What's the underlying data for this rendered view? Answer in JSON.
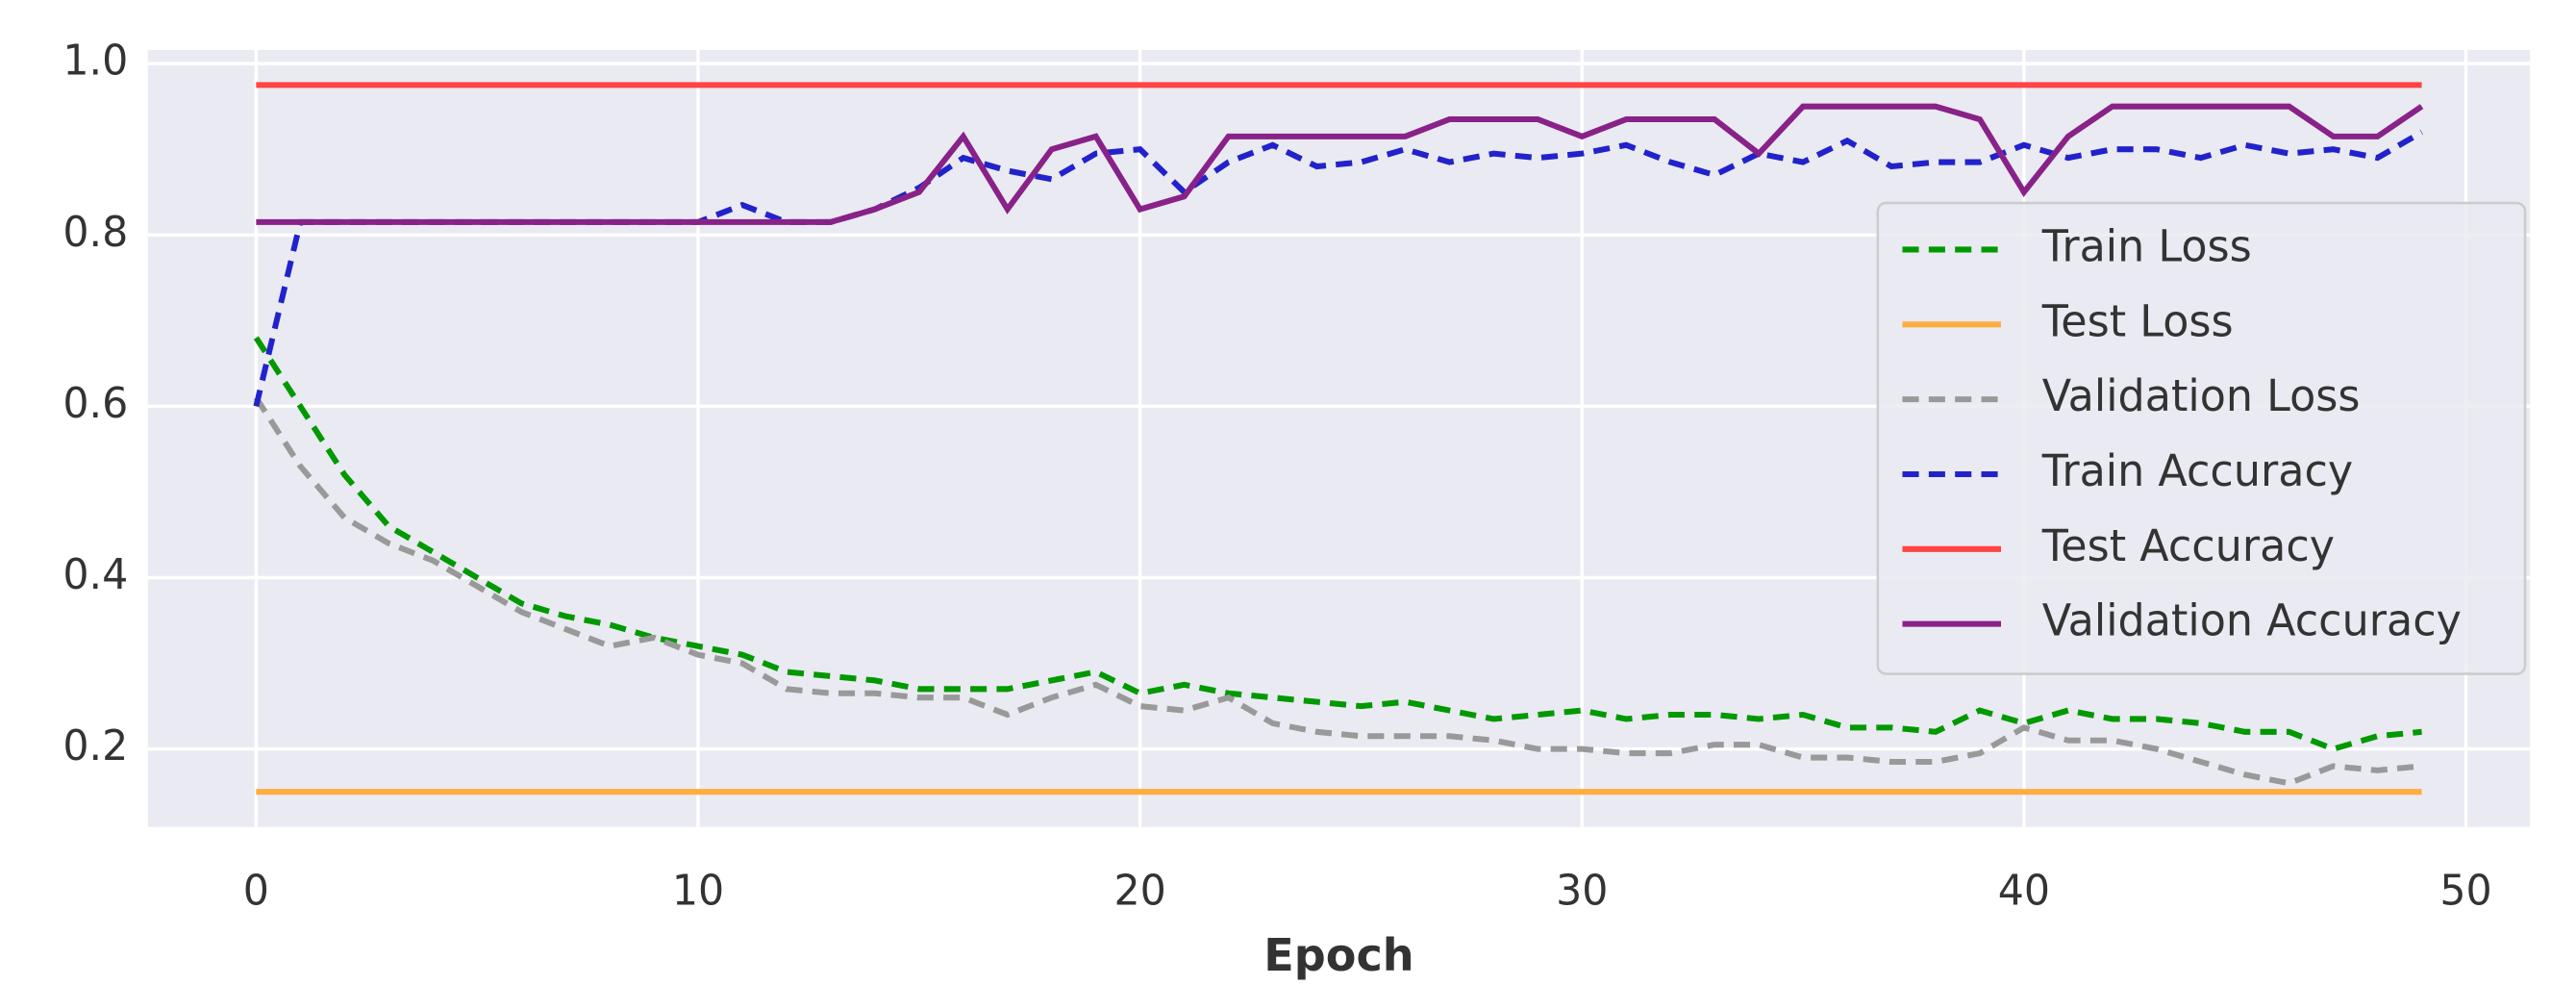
{
  "chart_data": {
    "type": "line",
    "x_label": "Epoch",
    "x": [
      0,
      1,
      2,
      3,
      4,
      5,
      6,
      7,
      8,
      9,
      10,
      11,
      12,
      13,
      14,
      15,
      16,
      17,
      18,
      19,
      20,
      21,
      22,
      23,
      24,
      25,
      26,
      27,
      28,
      29,
      30,
      31,
      32,
      33,
      34,
      35,
      36,
      37,
      38,
      39,
      40,
      41,
      42,
      43,
      44,
      45,
      46,
      47,
      48,
      49
    ],
    "series": [
      {
        "name": "Train Loss",
        "color": "#009900",
        "dashed": true,
        "values": [
          0.68,
          0.6,
          0.52,
          0.46,
          0.43,
          0.4,
          0.37,
          0.355,
          0.345,
          0.33,
          0.32,
          0.31,
          0.29,
          0.285,
          0.28,
          0.27,
          0.27,
          0.27,
          0.28,
          0.29,
          0.265,
          0.275,
          0.265,
          0.26,
          0.255,
          0.25,
          0.255,
          0.245,
          0.235,
          0.24,
          0.245,
          0.235,
          0.24,
          0.24,
          0.235,
          0.24,
          0.225,
          0.225,
          0.22,
          0.245,
          0.23,
          0.245,
          0.235,
          0.235,
          0.23,
          0.22,
          0.22,
          0.2,
          0.215,
          0.22
        ]
      },
      {
        "name": "Test Loss",
        "color": "#ffad40",
        "dashed": false,
        "values": [
          0.15,
          0.15,
          0.15,
          0.15,
          0.15,
          0.15,
          0.15,
          0.15,
          0.15,
          0.15,
          0.15,
          0.15,
          0.15,
          0.15,
          0.15,
          0.15,
          0.15,
          0.15,
          0.15,
          0.15,
          0.15,
          0.15,
          0.15,
          0.15,
          0.15,
          0.15,
          0.15,
          0.15,
          0.15,
          0.15,
          0.15,
          0.15,
          0.15,
          0.15,
          0.15,
          0.15,
          0.15,
          0.15,
          0.15,
          0.15,
          0.15,
          0.15,
          0.15,
          0.15,
          0.15,
          0.15,
          0.15,
          0.15,
          0.15,
          0.15
        ]
      },
      {
        "name": "Validation Loss",
        "color": "#999999",
        "dashed": true,
        "values": [
          0.61,
          0.53,
          0.47,
          0.44,
          0.42,
          0.39,
          0.36,
          0.34,
          0.32,
          0.33,
          0.31,
          0.3,
          0.27,
          0.265,
          0.265,
          0.26,
          0.26,
          0.24,
          0.26,
          0.275,
          0.25,
          0.245,
          0.26,
          0.23,
          0.22,
          0.215,
          0.215,
          0.215,
          0.21,
          0.2,
          0.2,
          0.195,
          0.195,
          0.205,
          0.205,
          0.19,
          0.19,
          0.185,
          0.185,
          0.195,
          0.225,
          0.21,
          0.21,
          0.2,
          0.185,
          0.17,
          0.16,
          0.18,
          0.175,
          0.18
        ]
      },
      {
        "name": "Train Accuracy",
        "color": "#2222cc",
        "dashed": true,
        "values": [
          0.6,
          0.815,
          0.815,
          0.815,
          0.815,
          0.815,
          0.815,
          0.815,
          0.815,
          0.815,
          0.815,
          0.835,
          0.815,
          0.815,
          0.83,
          0.855,
          0.89,
          0.875,
          0.865,
          0.895,
          0.9,
          0.85,
          0.885,
          0.905,
          0.88,
          0.885,
          0.9,
          0.885,
          0.895,
          0.89,
          0.895,
          0.905,
          0.885,
          0.87,
          0.895,
          0.885,
          0.91,
          0.88,
          0.885,
          0.885,
          0.905,
          0.89,
          0.9,
          0.9,
          0.89,
          0.905,
          0.895,
          0.9,
          0.89,
          0.92
        ]
      },
      {
        "name": "Test Accuracy",
        "color": "#ff4444",
        "dashed": false,
        "values": [
          0.975,
          0.975,
          0.975,
          0.975,
          0.975,
          0.975,
          0.975,
          0.975,
          0.975,
          0.975,
          0.975,
          0.975,
          0.975,
          0.975,
          0.975,
          0.975,
          0.975,
          0.975,
          0.975,
          0.975,
          0.975,
          0.975,
          0.975,
          0.975,
          0.975,
          0.975,
          0.975,
          0.975,
          0.975,
          0.975,
          0.975,
          0.975,
          0.975,
          0.975,
          0.975,
          0.975,
          0.975,
          0.975,
          0.975,
          0.975,
          0.975,
          0.975,
          0.975,
          0.975,
          0.975,
          0.975,
          0.975,
          0.975,
          0.975,
          0.975
        ]
      },
      {
        "name": "Validation Accuracy",
        "color": "#882288",
        "dashed": false,
        "values": [
          0.815,
          0.815,
          0.815,
          0.815,
          0.815,
          0.815,
          0.815,
          0.815,
          0.815,
          0.815,
          0.815,
          0.815,
          0.815,
          0.815,
          0.83,
          0.85,
          0.915,
          0.83,
          0.9,
          0.915,
          0.83,
          0.845,
          0.915,
          0.915,
          0.915,
          0.915,
          0.915,
          0.935,
          0.935,
          0.935,
          0.915,
          0.935,
          0.935,
          0.935,
          0.895,
          0.95,
          0.95,
          0.95,
          0.95,
          0.935,
          0.85,
          0.915,
          0.95,
          0.95,
          0.95,
          0.95,
          0.95,
          0.915,
          0.915,
          0.95
        ]
      }
    ],
    "xlim": [
      -2.45,
      51.45
    ],
    "ylim": [
      0.109,
      1.016
    ],
    "xticks": [
      0,
      10,
      20,
      30,
      40,
      50
    ],
    "yticks": [
      0.2,
      0.4,
      0.6,
      0.8,
      {
        "value": 1,
        "label": "1.0"
      }
    ],
    "grid": true,
    "legend": "right"
  }
}
